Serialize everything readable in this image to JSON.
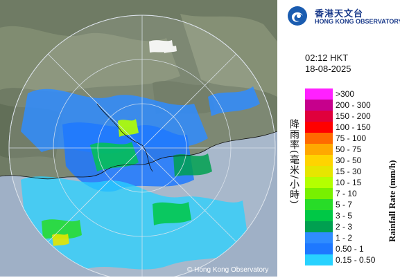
{
  "logo": {
    "zh": "香港天文台",
    "en": "HONG KONG OBSERVATORY",
    "icon": "hko-logo-icon"
  },
  "timestamp": {
    "time": "02:12 HKT",
    "date": "18-08-2025"
  },
  "legend": {
    "title_zh": "降雨率(毫米/小時)",
    "title_en": "Rainfall Rate (mm/h)",
    "items": [
      {
        "label": ">300",
        "color": "#ff20ff"
      },
      {
        "label": "200 - 300",
        "color": "#c6008c"
      },
      {
        "label": "150 - 200",
        "color": "#e0003c"
      },
      {
        "label": "100 - 150",
        "color": "#ff0000"
      },
      {
        "label": "75 - 100",
        "color": "#ff6a00"
      },
      {
        "label": "50 - 75",
        "color": "#ffa800"
      },
      {
        "label": "30 - 50",
        "color": "#ffd400"
      },
      {
        "label": "15 - 30",
        "color": "#e6e600"
      },
      {
        "label": "10 - 15",
        "color": "#b4ff00"
      },
      {
        "label": "7 - 10",
        "color": "#78f000"
      },
      {
        "label": "5 - 7",
        "color": "#28dc28"
      },
      {
        "label": "3 - 5",
        "color": "#00c846"
      },
      {
        "label": "2 - 3",
        "color": "#00a050"
      },
      {
        "label": "1 - 2",
        "color": "#2f8cff"
      },
      {
        "label": "0.50 - 1",
        "color": "#1e78ff"
      },
      {
        "label": "0.15 - 0.50",
        "color": "#28d2ff"
      }
    ]
  },
  "copyright": "© Hong Kong Observatory"
}
